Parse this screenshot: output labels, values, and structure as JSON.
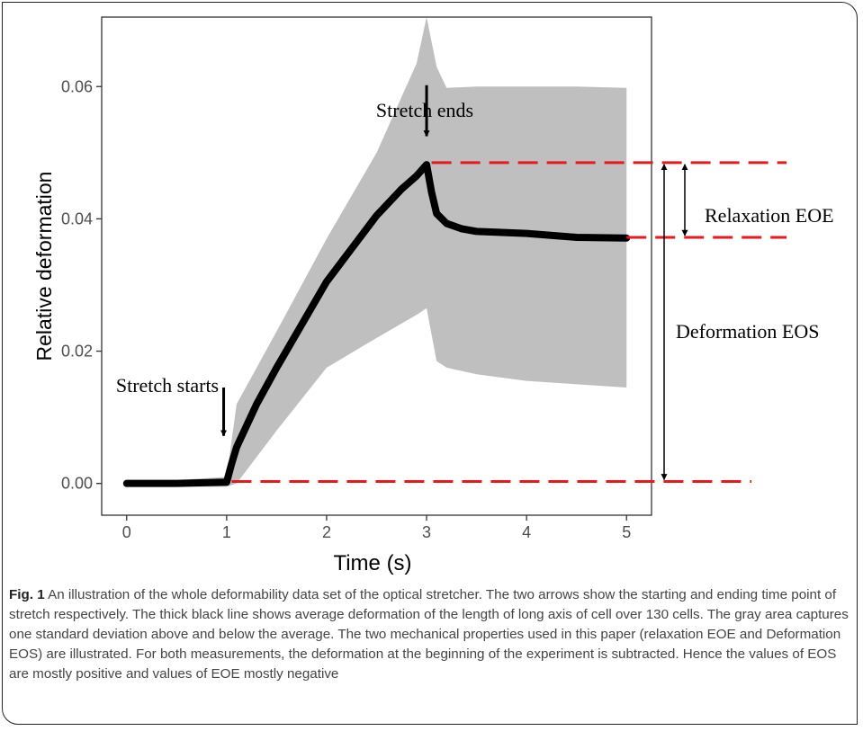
{
  "figure": {
    "caption_label": "Fig. 1",
    "caption_text": "An illustration of the whole deformability data set of the optical stretcher. The two arrows show the starting and ending time point of stretch respectively. The thick black line shows average deformation of the length of long axis of cell over 130 cells. The gray area captures one standard deviation above and below the average. The two mechanical properties used in this paper (relaxation EOE and Deformation EOS) are illustrated. For both measurements, the deformation at the beginning of the experiment is subtracted. Hence the values of EOS are mostly positive and values of EOE mostly negative"
  },
  "chart_data": {
    "type": "line",
    "title": "",
    "xlabel": "Time (s)",
    "ylabel": "Relative deformation",
    "xlim": [
      -0.25,
      5.25
    ],
    "ylim": [
      -0.0048,
      0.0705
    ],
    "x_ticks": [
      0,
      1,
      2,
      3,
      4,
      5
    ],
    "x_tick_labels": [
      "0",
      "1",
      "2",
      "3",
      "4",
      "5"
    ],
    "y_ticks": [
      0.0,
      0.02,
      0.04,
      0.06
    ],
    "y_tick_labels": [
      "0.00",
      "0.02",
      "0.04",
      "0.06"
    ],
    "grid": false,
    "legend": "none",
    "colors": {
      "mean_line": "#000000",
      "sd_band": "#bfbfbf",
      "reference_lines": "#e41a1c",
      "annotation": "#000000"
    },
    "series": [
      {
        "x": [
          0.0,
          0.5,
          1.0,
          1.05,
          1.1,
          1.3,
          1.5,
          1.75,
          2.0,
          2.25,
          2.5,
          2.75,
          2.9,
          3.0,
          3.05,
          3.1,
          3.2,
          3.35,
          3.5,
          4.0,
          4.5,
          5.0
        ],
        "y": [
          0.0,
          0.0,
          0.0002,
          0.003,
          0.0055,
          0.012,
          0.0175,
          0.024,
          0.0305,
          0.0355,
          0.0405,
          0.0445,
          0.0465,
          0.0482,
          0.044,
          0.0408,
          0.0393,
          0.0385,
          0.0381,
          0.0378,
          0.0372,
          0.0371
        ]
      }
    ],
    "sd_band": {
      "x": [
        0.0,
        0.5,
        1.0,
        1.1,
        1.5,
        2.0,
        2.5,
        2.9,
        3.0,
        3.1,
        3.2,
        3.5,
        4.0,
        4.5,
        5.0
      ],
      "upper": [
        0.0005,
        0.0005,
        0.001,
        0.012,
        0.023,
        0.037,
        0.05,
        0.0635,
        0.0705,
        0.063,
        0.0598,
        0.06,
        0.06,
        0.06,
        0.0598
      ],
      "lower": [
        -0.0005,
        -0.0005,
        -0.0005,
        0.0,
        0.008,
        0.0175,
        0.022,
        0.0255,
        0.0265,
        0.0185,
        0.0175,
        0.0165,
        0.0155,
        0.015,
        0.0145
      ]
    },
    "reference_lines": [
      {
        "y": 0.0003,
        "x_from": 1.05,
        "x_to": 6.25
      },
      {
        "y": 0.0485,
        "x_from": 3.05,
        "x_to": 6.6
      },
      {
        "y": 0.0372,
        "x_from": 5.0,
        "x_to": 6.6
      }
    ],
    "annotations": [
      {
        "text": "Stretch starts",
        "arrow_x": 0.97,
        "arrow_y_from": 0.0145,
        "arrow_y_to": 0.0072
      },
      {
        "text": "Stretch ends",
        "arrow_x": 3.0,
        "arrow_y_from": 0.0602,
        "arrow_y_to": 0.0525
      },
      {
        "text": "Relaxation EOE",
        "y_from": 0.0485,
        "y_to": 0.0372
      },
      {
        "text": "Deformation EOS",
        "y_from": 0.0485,
        "y_to": 0.0003
      }
    ]
  }
}
